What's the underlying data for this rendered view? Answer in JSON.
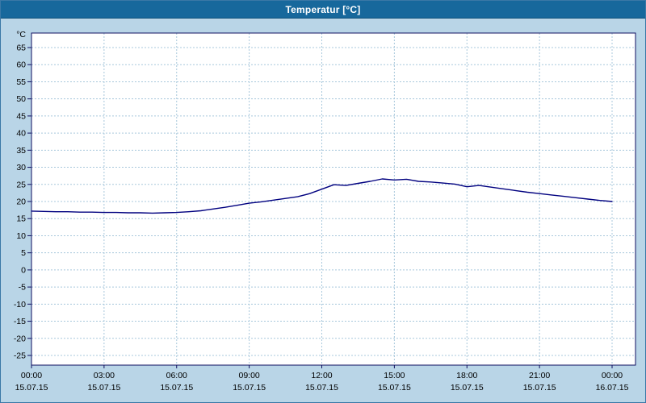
{
  "window": {
    "title": "Temperatur [°C]"
  },
  "chart_data": {
    "type": "line",
    "title": "Temperatur [°C]",
    "legend": false,
    "grid": true,
    "y_axis": {
      "unit_label": "°C",
      "min": -25,
      "max": 65,
      "tick_step": 5
    },
    "x_axis": {
      "ticks": [
        {
          "hour": 0,
          "time": "00:00",
          "date": "15.07.15"
        },
        {
          "hour": 3,
          "time": "03:00",
          "date": "15.07.15"
        },
        {
          "hour": 6,
          "time": "06:00",
          "date": "15.07.15"
        },
        {
          "hour": 9,
          "time": "09:00",
          "date": "15.07.15"
        },
        {
          "hour": 12,
          "time": "12:00",
          "date": "15.07.15"
        },
        {
          "hour": 15,
          "time": "15:00",
          "date": "15.07.15"
        },
        {
          "hour": 18,
          "time": "18:00",
          "date": "15.07.15"
        },
        {
          "hour": 21,
          "time": "21:00",
          "date": "15.07.15"
        },
        {
          "hour": 24,
          "time": "00:00",
          "date": "16.07.15"
        }
      ]
    },
    "series": [
      {
        "name": "Temperatur",
        "color": "#00007f",
        "x_hours": [
          0,
          0.5,
          1,
          1.5,
          2,
          2.5,
          3,
          3.5,
          4,
          4.5,
          5,
          5.5,
          6,
          6.5,
          7,
          7.5,
          8,
          8.5,
          9,
          9.5,
          10,
          10.5,
          11,
          11.5,
          12,
          12.5,
          13,
          13.5,
          14,
          14.5,
          15,
          15.5,
          16,
          16.5,
          17,
          17.5,
          18,
          18.5,
          19,
          19.5,
          20,
          20.5,
          21,
          21.5,
          22,
          22.5,
          23,
          23.5,
          24
        ],
        "values": [
          17.2,
          17.1,
          17.0,
          17.0,
          16.9,
          16.9,
          16.8,
          16.8,
          16.7,
          16.7,
          16.6,
          16.7,
          16.8,
          17.0,
          17.3,
          17.8,
          18.3,
          18.9,
          19.5,
          19.9,
          20.4,
          20.9,
          21.4,
          22.3,
          23.6,
          24.9,
          24.7,
          25.3,
          25.9,
          26.6,
          26.3,
          26.5,
          25.9,
          25.7,
          25.4,
          25.1,
          24.3,
          24.7,
          24.2,
          23.7,
          23.2,
          22.7,
          22.3,
          21.9,
          21.5,
          21.1,
          20.7,
          20.3,
          20.0
        ]
      }
    ],
    "colors": {
      "titlebar": "#17689c",
      "background": "#b9d5e7",
      "plot_background": "#ffffff",
      "grid": "#a8c8dc",
      "axis": "#101060",
      "text": "#000000"
    }
  }
}
